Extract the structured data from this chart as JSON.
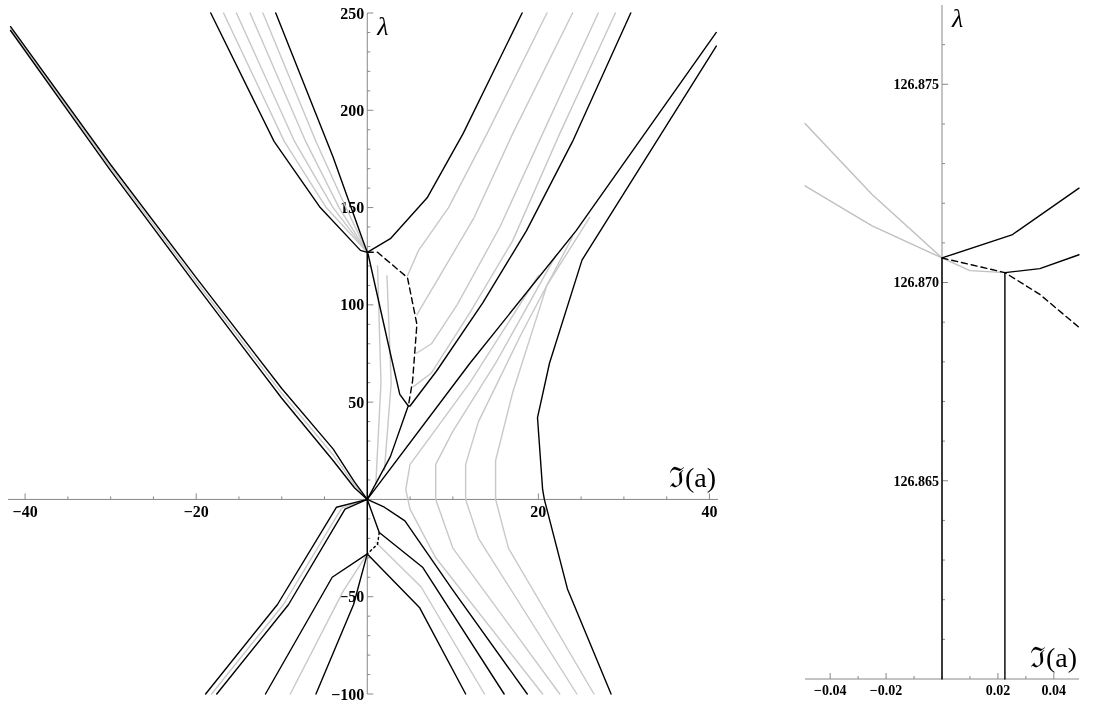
{
  "chart_data": [
    {
      "type": "line",
      "xlabel": "ℑ(a)",
      "ylabel": "λ",
      "xlim": [
        -42,
        41
      ],
      "ylim": [
        -100,
        250
      ],
      "xticks": [
        {
          "value": -40,
          "label": "−40"
        },
        {
          "value": -35,
          "label": null
        },
        {
          "value": -30,
          "label": null
        },
        {
          "value": -25,
          "label": null
        },
        {
          "value": -20,
          "label": "−20"
        },
        {
          "value": -15,
          "label": null
        },
        {
          "value": -10,
          "label": null
        },
        {
          "value": -5,
          "label": null
        },
        {
          "value": 5,
          "label": null
        },
        {
          "value": 10,
          "label": null
        },
        {
          "value": 15,
          "label": null
        },
        20,
        {
          "value": 25,
          "label": null
        },
        {
          "value": 30,
          "label": null
        },
        {
          "value": 35,
          "label": null
        },
        40
      ],
      "yticks": [
        {
          "value": -100,
          "label": "−100"
        },
        {
          "value": -90,
          "label": null
        },
        {
          "value": -80,
          "label": null
        },
        {
          "value": -70,
          "label": null
        },
        {
          "value": -60,
          "label": null
        },
        {
          "value": -50,
          "label": "−50"
        },
        {
          "value": -40,
          "label": null
        },
        {
          "value": -30,
          "label": null
        },
        {
          "value": -20,
          "label": null
        },
        {
          "value": -10,
          "label": null
        },
        {
          "value": 10,
          "label": null
        },
        {
          "value": 20,
          "label": null
        },
        {
          "value": 30,
          "label": null
        },
        {
          "value": 40,
          "label": null
        },
        50,
        {
          "value": 60,
          "label": null
        },
        {
          "value": 70,
          "label": null
        },
        {
          "value": 80,
          "label": null
        },
        {
          "value": 90,
          "label": null
        },
        100,
        {
          "value": 110,
          "label": null
        },
        {
          "value": 120,
          "label": null
        },
        {
          "value": 130,
          "label": null
        },
        {
          "value": 140,
          "label": null
        },
        150,
        {
          "value": 160,
          "label": null
        },
        {
          "value": 170,
          "label": null
        },
        {
          "value": 180,
          "label": null
        },
        {
          "value": 190,
          "label": null
        },
        200,
        {
          "value": 210,
          "label": null
        },
        {
          "value": 220,
          "label": null
        },
        {
          "value": 230,
          "label": null
        },
        {
          "value": 240,
          "label": null
        },
        250
      ],
      "series": [
        {
          "color": "#c8c8c8",
          "x": [
            -16.8,
            -9.7,
            -4.8,
            0
          ],
          "values": [
            250,
            184,
            150,
            127
          ]
        },
        {
          "color": "#c8c8c8",
          "x": [
            -15.3,
            -8.5,
            -4.0,
            0
          ],
          "values": [
            250,
            184,
            150,
            127
          ]
        },
        {
          "color": "#c8c8c8",
          "x": [
            -13.7,
            -7.2,
            -3.3,
            0
          ],
          "values": [
            250,
            184,
            150,
            127
          ]
        },
        {
          "color": "#c8c8c8",
          "x": [
            -12.2,
            -6.0,
            -2.5,
            0
          ],
          "values": [
            250,
            184,
            150,
            127
          ]
        },
        {
          "color": "#c8c8c8",
          "x": [
            21,
            14,
            9.5,
            6,
            4.7
          ],
          "values": [
            250,
            188,
            150,
            128,
            115
          ]
        },
        {
          "color": "#c8c8c8",
          "x": [
            24,
            17,
            12.5,
            8.5,
            5.8
          ],
          "values": [
            250,
            188,
            145,
            115,
            95
          ]
        },
        {
          "color": "#c8c8c8",
          "x": [
            27,
            20.5,
            15.5,
            10.5,
            7.5,
            5.7
          ],
          "values": [
            250,
            188,
            140,
            100,
            80,
            75
          ]
        },
        {
          "color": "#c8c8c8",
          "x": [
            29,
            22.5,
            17,
            12,
            7.5,
            5.4
          ],
          "values": [
            250,
            188,
            133,
            96,
            65,
            58
          ]
        },
        {
          "color": "#c8c8c8",
          "x": [
            1,
            1.6,
            1.2
          ],
          "values": [
            8,
            60,
            120
          ]
        },
        {
          "color": "#c8c8c8",
          "x": [
            2,
            2.8,
            2.3
          ],
          "values": [
            15,
            60,
            115
          ]
        },
        {
          "color": "#c8c8c8",
          "x": [
            20,
            12,
            7,
            5,
            4.5,
            5,
            8,
            20.5
          ],
          "values": [
            115,
            60,
            30,
            18,
            5,
            -5,
            -30,
            -100
          ]
        },
        {
          "color": "#c8c8c8",
          "x": [
            22,
            15,
            10,
            8,
            8,
            10,
            22.5
          ],
          "values": [
            125,
            70,
            35,
            18,
            0,
            -25,
            -100
          ]
        },
        {
          "color": "#c8c8c8",
          "x": [
            24,
            18,
            13,
            11.5,
            11.5,
            13,
            24.5
          ],
          "values": [
            135,
            85,
            40,
            18,
            0,
            -20,
            -100
          ]
        },
        {
          "color": "#c8c8c8",
          "x": [
            26,
            21,
            17,
            15,
            15,
            16.5,
            26.5
          ],
          "values": [
            145,
            110,
            55,
            20,
            0,
            -25,
            -100
          ]
        },
        {
          "color": "#c8c8c8",
          "x": [
            -41.7,
            -30,
            -20,
            -10,
            -4,
            -1.5,
            0
          ],
          "values": [
            242,
            170.5,
            112,
            54.5,
            23,
            7.5,
            0
          ]
        },
        {
          "color": "#c8c8c8",
          "x": [
            0,
            -3,
            -9.8,
            -18.2
          ],
          "values": [
            0,
            -4.5,
            -54,
            -100
          ]
        },
        {
          "color": "#c8c8c8",
          "x": [
            0,
            -2.8,
            -9
          ],
          "values": [
            -28,
            -47,
            -100
          ]
        },
        {
          "color": "#c8c8c8",
          "x": [
            1,
            6.3,
            13.7
          ],
          "values": [
            -22,
            -45,
            -100
          ]
        },
        {
          "color": "#000000",
          "x": [
            -41.7,
            -30,
            -20,
            -10,
            -4,
            -1.5,
            0,
            2,
            4.4,
            9.9,
            18.7
          ],
          "values": [
            243,
            172,
            114,
            57,
            26,
            9,
            0,
            -4,
            -11,
            -46,
            -100
          ]
        },
        {
          "color": "#000000",
          "x": [
            -41.7,
            -30,
            -20,
            -10,
            -4,
            -1.5,
            0,
            1.4,
            6.5,
            16
          ],
          "values": [
            241,
            169,
            110,
            52,
            20,
            6,
            0,
            -17,
            -35,
            -100
          ]
        },
        {
          "color": "#000000",
          "x": [
            -18.3,
            -10.9,
            -5.5,
            -0.8,
            0,
            2.7,
            7,
            11.2,
            18.1
          ],
          "values": [
            250,
            184,
            150,
            128,
            127,
            134,
            155,
            188,
            250
          ]
        },
        {
          "color": "#000000",
          "x": [
            -10.7,
            -4,
            -0.5,
            0,
            0.1,
            2.7,
            3.8,
            4.8,
            4.7,
            2.7,
            0,
            -2.6,
            -9.2,
            -17.6
          ],
          "values": [
            250,
            176,
            133,
            127,
            126,
            75,
            54,
            48,
            47,
            22,
            0,
            -5,
            -54,
            -100
          ]
        },
        {
          "color": "#000000",
          "x": [
            30.8,
            24,
            18.6,
            13.5,
            8.1,
            5,
            4.8
          ],
          "values": [
            250,
            184,
            138,
            101,
            66,
            48,
            48
          ]
        },
        {
          "color": "#000000",
          "line_style": "dashed",
          "x": [
            0,
            1.2,
            4.7,
            5.8,
            5.3,
            4.8
          ],
          "values": [
            127,
            127,
            114,
            90,
            61,
            48
          ]
        },
        {
          "color": "#000000",
          "x": [
            -18.9,
            -10.5,
            -3.6,
            0,
            12,
            24.4,
            40.8
          ],
          "values": [
            -100,
            -54,
            -4,
            0,
            70,
            138,
            240
          ]
        },
        {
          "color": "#000000",
          "x": [
            40.8,
            25.1,
            21.3,
            19.9,
            20.5,
            20.7,
            23.4,
            28.5
          ],
          "values": [
            233,
            123,
            70,
            42,
            5,
            0,
            -46,
            -100
          ]
        },
        {
          "color": "#000000",
          "x": [
            -11.9,
            -4.1,
            0,
            6.1,
            11.5
          ],
          "values": [
            -100,
            -40,
            -28,
            -55.5,
            -100
          ]
        },
        {
          "color": "#000000",
          "x": [
            -6,
            -1.6,
            0,
            0
          ],
          "values": [
            -100,
            -54,
            -28,
            127
          ]
        },
        {
          "color": "#000000",
          "line_style": "dotted",
          "x": [
            1.4,
            1.2,
            0
          ],
          "values": [
            -17,
            -23,
            -28
          ]
        }
      ]
    },
    {
      "type": "line",
      "xlabel": "ℑ(a)",
      "ylabel": "λ",
      "xlim": [
        -0.049,
        0.049
      ],
      "ylim": [
        126.86,
        126.877
      ],
      "xticks": [
        {
          "value": -0.04,
          "label": "−0.04"
        },
        {
          "value": -0.03,
          "label": null
        },
        {
          "value": -0.02,
          "label": "−0.02"
        },
        {
          "value": -0.01,
          "label": null
        },
        {
          "value": 0,
          "label": null
        },
        {
          "value": 0.01,
          "label": null
        },
        0.02,
        {
          "value": 0.03,
          "label": null
        },
        0.04
      ],
      "yticks": [
        {
          "value": 126.861,
          "label": null
        },
        {
          "value": 126.862,
          "label": null
        },
        {
          "value": 126.863,
          "label": null
        },
        {
          "value": 126.864,
          "label": null
        },
        126.865,
        {
          "value": 126.866,
          "label": null
        },
        {
          "value": 126.867,
          "label": null
        },
        {
          "value": 126.868,
          "label": null
        },
        {
          "value": 126.869,
          "label": null
        },
        {
          "value": 126.87,
          "label": "126.870"
        },
        {
          "value": 126.871,
          "label": null
        },
        {
          "value": 126.872,
          "label": null
        },
        {
          "value": 126.873,
          "label": null
        },
        {
          "value": 126.874,
          "label": null
        },
        126.875,
        {
          "value": 126.876,
          "label": null
        }
      ],
      "series": [
        {
          "color": "#c0c0c0",
          "x": [
            -0.049,
            -0.025,
            0
          ],
          "values": [
            126.87401,
            126.87222,
            126.87062
          ]
        },
        {
          "color": "#c0c0c0",
          "x": [
            -0.049,
            -0.025,
            0,
            0.01,
            0.0225
          ],
          "values": [
            126.87244,
            126.87143,
            126.87062,
            126.8703,
            126.87025
          ]
        },
        {
          "color": "#000000",
          "x": [
            0,
            0,
            0.025,
            0.049
          ],
          "values": [
            126.86,
            126.87062,
            126.8712,
            126.87238
          ]
        },
        {
          "color": "#000000",
          "x": [
            0.0225,
            0.0225,
            0.035,
            0.049
          ],
          "values": [
            126.86,
            126.87025,
            126.87035,
            126.8707
          ]
        },
        {
          "color": "#000000",
          "line_style": "dashed",
          "x": [
            0,
            0.0225,
            0.035,
            0.049
          ],
          "values": [
            126.87062,
            126.87025,
            126.8697,
            126.86887
          ]
        }
      ]
    }
  ]
}
